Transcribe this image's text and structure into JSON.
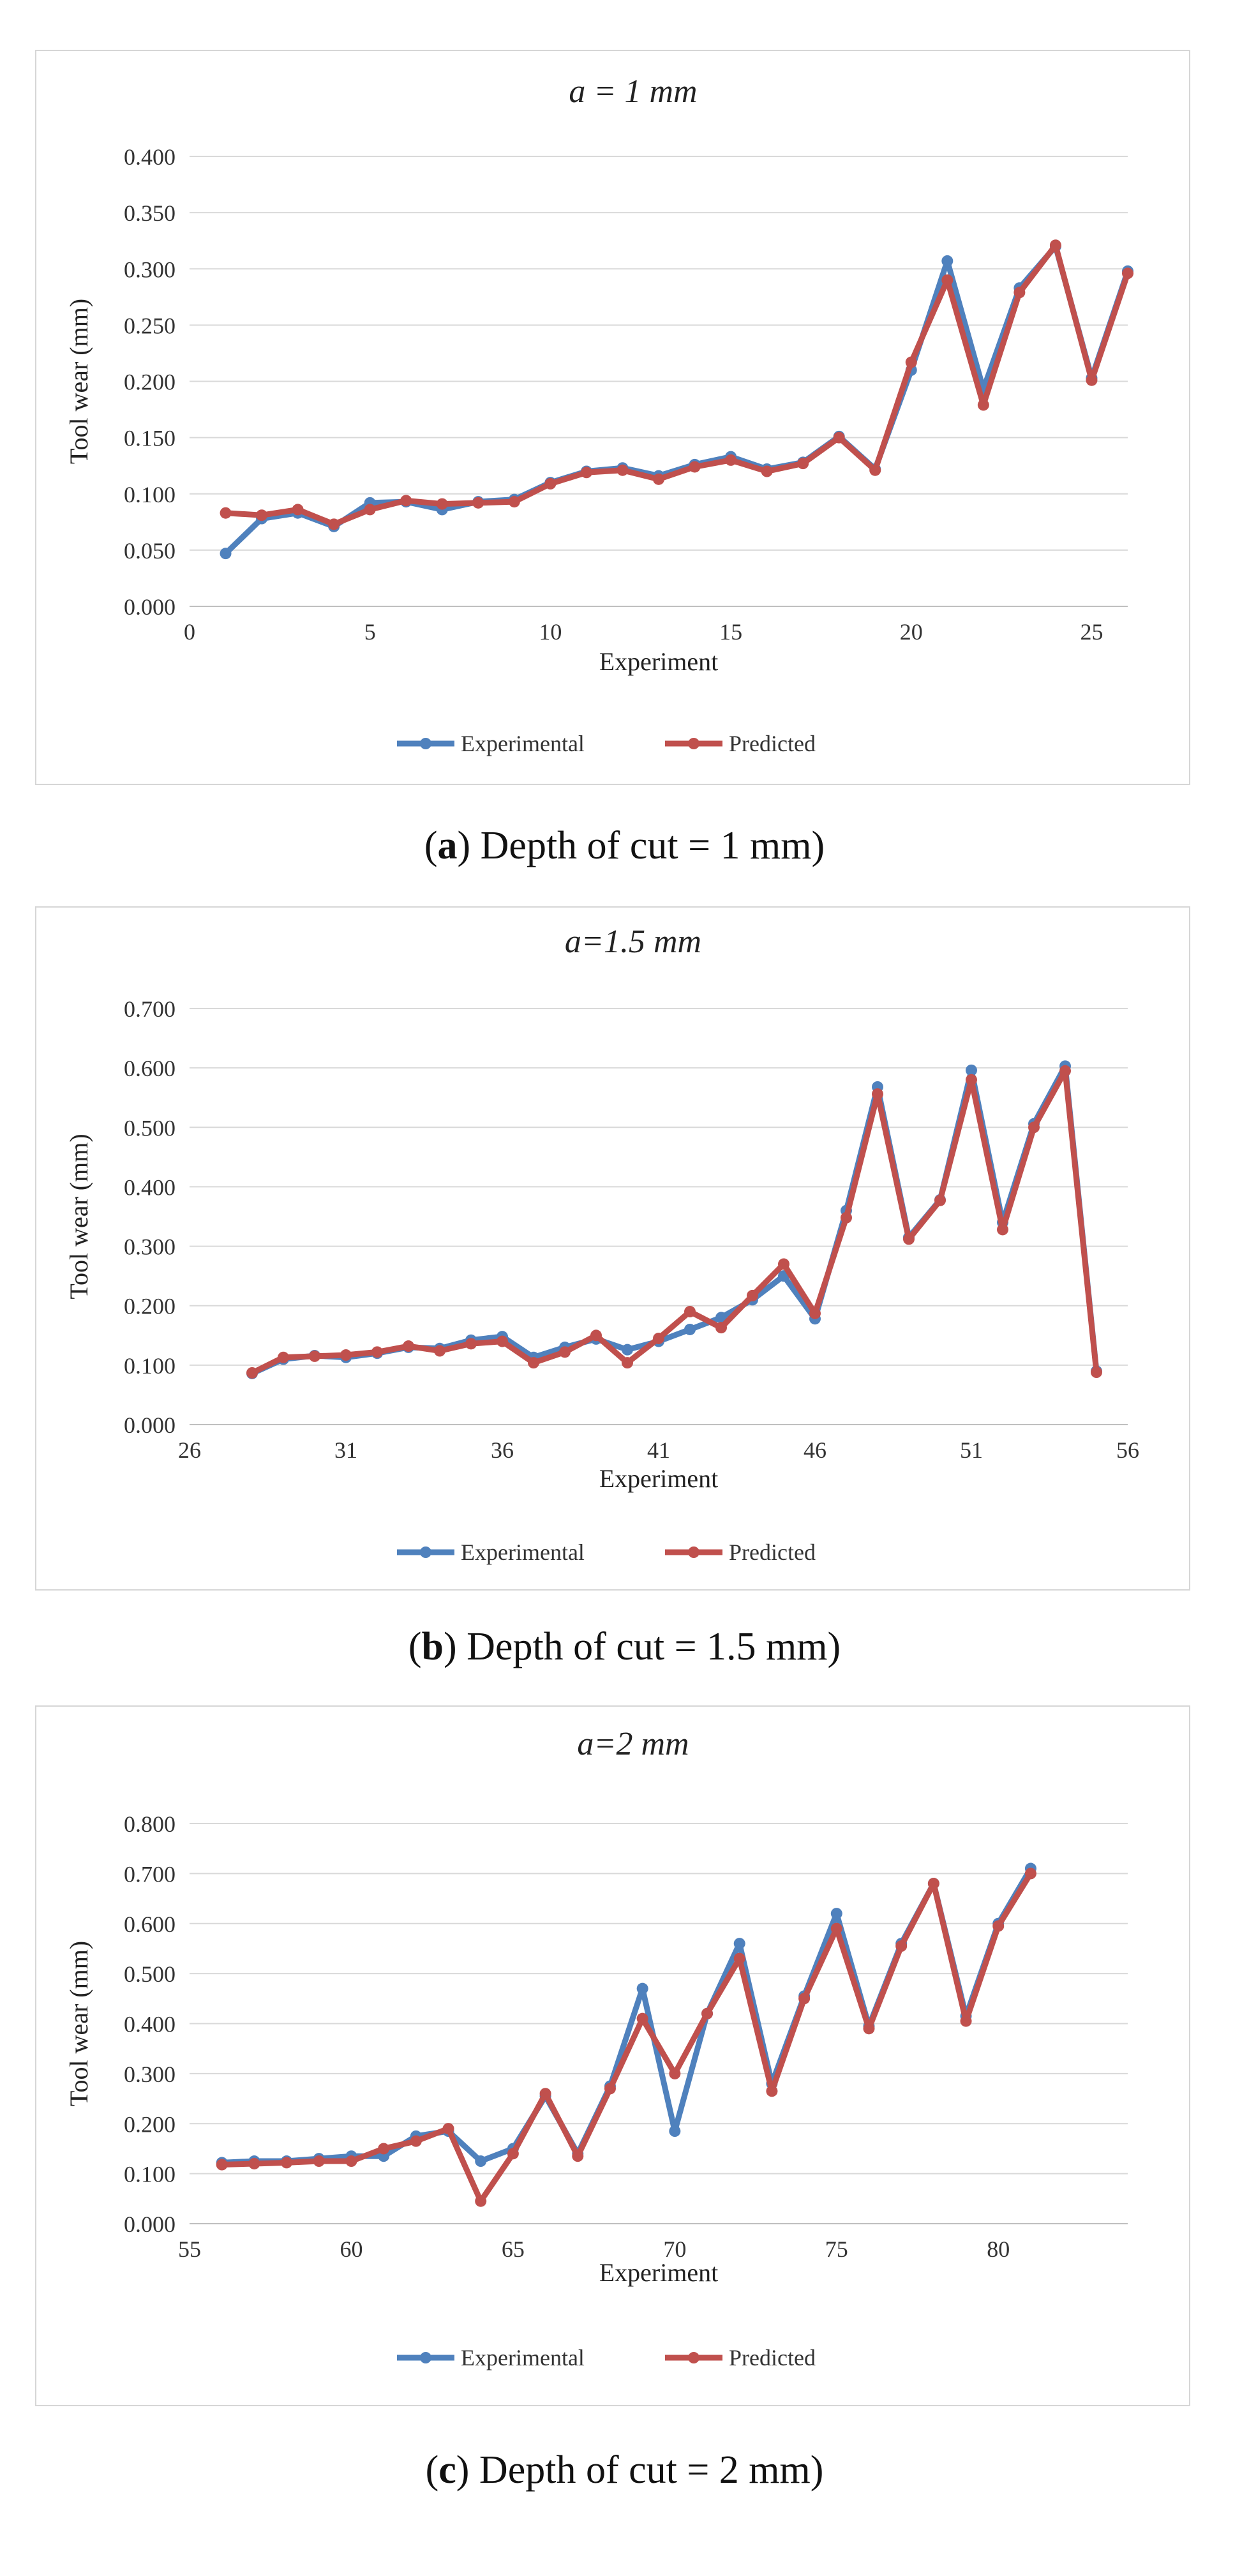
{
  "chart_data": [
    {
      "type": "line",
      "title": "a = 1 mm",
      "xlabel": "Experiment",
      "ylabel": "Tool wear (mm)",
      "xlim": [
        0,
        26
      ],
      "ylim": [
        0,
        0.4
      ],
      "xticks": [
        "0",
        "5",
        "10",
        "15",
        "20",
        "25"
      ],
      "yticks": [
        "0.000",
        "0.050",
        "0.100",
        "0.150",
        "0.200",
        "0.250",
        "0.300",
        "0.350",
        "0.400"
      ],
      "grid": true,
      "legend": "bottom",
      "x": [
        1,
        2,
        3,
        4,
        5,
        6,
        7,
        8,
        9,
        10,
        11,
        12,
        13,
        14,
        15,
        16,
        17,
        18,
        19,
        20,
        21,
        22,
        23,
        24,
        25,
        26
      ],
      "series": [
        {
          "name": "Experimental",
          "color": "#4f81bd",
          "values": [
            0.047,
            0.078,
            0.083,
            0.071,
            0.092,
            0.093,
            0.086,
            0.093,
            0.095,
            0.11,
            0.12,
            0.123,
            0.116,
            0.126,
            0.133,
            0.122,
            0.128,
            0.151,
            0.122,
            0.21,
            0.307,
            0.193,
            0.283,
            0.32,
            0.203,
            0.298
          ]
        },
        {
          "name": "Predicted",
          "color": "#c0504d",
          "values": [
            0.083,
            0.081,
            0.086,
            0.073,
            0.086,
            0.094,
            0.091,
            0.092,
            0.093,
            0.109,
            0.119,
            0.121,
            0.113,
            0.124,
            0.13,
            0.12,
            0.127,
            0.15,
            0.121,
            0.217,
            0.29,
            0.179,
            0.279,
            0.321,
            0.201,
            0.296
          ]
        }
      ]
    },
    {
      "type": "line",
      "title": "a=1.5 mm",
      "xlabel": "Experiment",
      "ylabel": "Tool wear (mm)",
      "xlim": [
        26,
        56
      ],
      "ylim": [
        0,
        0.7
      ],
      "xticks": [
        "26",
        "31",
        "36",
        "41",
        "46",
        "51",
        "56"
      ],
      "yticks": [
        "0.000",
        "0.100",
        "0.200",
        "0.300",
        "0.400",
        "0.500",
        "0.600",
        "0.700"
      ],
      "grid": true,
      "legend": "bottom",
      "x": [
        28,
        29,
        30,
        31,
        32,
        33,
        34,
        35,
        36,
        37,
        38,
        39,
        40,
        41,
        42,
        43,
        44,
        45,
        46,
        47,
        48,
        49,
        50,
        51,
        52,
        53,
        54,
        55
      ],
      "series": [
        {
          "name": "Experimental",
          "color": "#4f81bd",
          "values": [
            0.086,
            0.11,
            0.116,
            0.113,
            0.12,
            0.13,
            0.128,
            0.142,
            0.148,
            0.113,
            0.13,
            0.144,
            0.126,
            0.14,
            0.16,
            0.18,
            0.21,
            0.25,
            0.178,
            0.36,
            0.568,
            0.315,
            0.378,
            0.596,
            0.34,
            0.506,
            0.603,
            0.09
          ]
        },
        {
          "name": "Predicted",
          "color": "#c0504d",
          "values": [
            0.087,
            0.113,
            0.115,
            0.117,
            0.122,
            0.132,
            0.124,
            0.136,
            0.14,
            0.104,
            0.122,
            0.15,
            0.104,
            0.145,
            0.19,
            0.163,
            0.217,
            0.27,
            0.187,
            0.348,
            0.556,
            0.312,
            0.377,
            0.58,
            0.328,
            0.5,
            0.595,
            0.088
          ]
        }
      ]
    },
    {
      "type": "line",
      "title": "a=2 mm",
      "xlabel": "Experiment",
      "ylabel": "Tool wear (mm)",
      "xlim": [
        55,
        84
      ],
      "ylim": [
        0,
        0.8
      ],
      "xticks": [
        "55",
        "60",
        "65",
        "70",
        "75",
        "80"
      ],
      "yticks": [
        "0.000",
        "0.100",
        "0.200",
        "0.300",
        "0.400",
        "0.500",
        "0.600",
        "0.700",
        "0.800"
      ],
      "grid": true,
      "legend": "bottom",
      "x": [
        56,
        57,
        58,
        59,
        60,
        61,
        62,
        63,
        64,
        65,
        66,
        67,
        68,
        69,
        70,
        71,
        72,
        73,
        74,
        75,
        76,
        77,
        78,
        79,
        80,
        81
      ],
      "series": [
        {
          "name": "Experimental",
          "color": "#4f81bd",
          "values": [
            0.122,
            0.125,
            0.125,
            0.13,
            0.135,
            0.135,
            0.175,
            0.185,
            0.125,
            0.15,
            0.255,
            0.14,
            0.275,
            0.47,
            0.185,
            0.42,
            0.56,
            0.28,
            0.455,
            0.62,
            0.395,
            0.56,
            0.68,
            0.415,
            0.6,
            0.71
          ]
        },
        {
          "name": "Predicted",
          "color": "#c0504d",
          "values": [
            0.118,
            0.12,
            0.122,
            0.125,
            0.125,
            0.15,
            0.165,
            0.19,
            0.045,
            0.14,
            0.26,
            0.135,
            0.27,
            0.41,
            0.3,
            0.42,
            0.53,
            0.265,
            0.45,
            0.59,
            0.39,
            0.555,
            0.68,
            0.405,
            0.595,
            0.7
          ]
        }
      ]
    }
  ],
  "captions": [
    {
      "label": "a",
      "text": " Depth of cut = 1 mm"
    },
    {
      "label": "b",
      "text": " Depth of cut = 1.5 mm"
    },
    {
      "label": "c",
      "text": " Depth of cut = 2 mm"
    }
  ]
}
